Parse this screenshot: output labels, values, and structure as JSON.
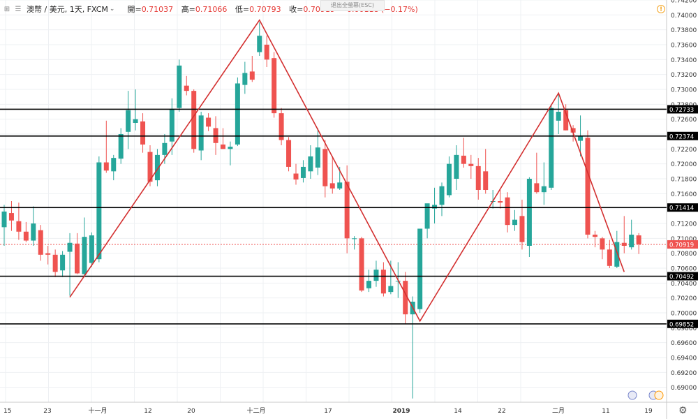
{
  "header": {
    "symbol": "澳幣 / 美元, 1天, FXCM",
    "open_label": "開=",
    "open_value": "0.71037",
    "high_label": "高=",
    "high_value": "0.71066",
    "low_label": "低=",
    "low_value": "0.70793",
    "close_label": "收=",
    "close_value": "0.70919",
    "change": "−0.00118 (−0.17%)",
    "esc_hint": "退出全螢幕(ESC)"
  },
  "colors": {
    "up": "#26a69a",
    "down": "#ef5350",
    "trendline": "#d32f2f",
    "level_line": "#000000",
    "last_price": "#ef5350"
  },
  "chart_data": {
    "type": "candlestick",
    "ylim": [
      0.688,
      0.742
    ],
    "y_ticks": [
      "0.74200",
      "0.74000",
      "0.73800",
      "0.73600",
      "0.73400",
      "0.73200",
      "0.73000",
      "0.72800",
      "0.72600",
      "0.72400",
      "0.72200",
      "0.72000",
      "0.71800",
      "0.71600",
      "0.71400",
      "0.71200",
      "0.71000",
      "0.70800",
      "0.70600",
      "0.70400",
      "0.70200",
      "0.70000",
      "0.69800",
      "0.69600",
      "0.69400",
      "0.69200",
      "0.69000"
    ],
    "x_ticks": [
      "15",
      "23",
      "十一月",
      "12",
      "20",
      "十二月",
      "17",
      "2019",
      "14",
      "22",
      "二月",
      "11",
      "19"
    ],
    "last_price": "0.70919",
    "horizontal_levels": [
      "0.72733",
      "0.72374",
      "0.71414",
      "0.70492",
      "0.69852"
    ],
    "candles": [
      {
        "o": 0.7115,
        "h": 0.7145,
        "l": 0.709,
        "c": 0.7136
      },
      {
        "o": 0.7134,
        "h": 0.715,
        "l": 0.711,
        "c": 0.7124
      },
      {
        "o": 0.7123,
        "h": 0.7148,
        "l": 0.7098,
        "c": 0.7109
      },
      {
        "o": 0.7109,
        "h": 0.7122,
        "l": 0.7095,
        "c": 0.7097
      },
      {
        "o": 0.7097,
        "h": 0.7143,
        "l": 0.709,
        "c": 0.712
      },
      {
        "o": 0.7111,
        "h": 0.7118,
        "l": 0.707,
        "c": 0.7078
      },
      {
        "o": 0.708,
        "h": 0.709,
        "l": 0.7065,
        "c": 0.7078
      },
      {
        "o": 0.7078,
        "h": 0.7085,
        "l": 0.7048,
        "c": 0.7055
      },
      {
        "o": 0.7057,
        "h": 0.7083,
        "l": 0.7048,
        "c": 0.7078
      },
      {
        "o": 0.7082,
        "h": 0.7107,
        "l": 0.7023,
        "c": 0.7094
      },
      {
        "o": 0.7093,
        "h": 0.7107,
        "l": 0.7052,
        "c": 0.7053
      },
      {
        "o": 0.7052,
        "h": 0.7128,
        "l": 0.7048,
        "c": 0.7102
      },
      {
        "o": 0.7067,
        "h": 0.7108,
        "l": 0.7062,
        "c": 0.7104
      },
      {
        "o": 0.7072,
        "h": 0.721,
        "l": 0.7068,
        "c": 0.7202
      },
      {
        "o": 0.7202,
        "h": 0.7258,
        "l": 0.7188,
        "c": 0.7191
      },
      {
        "o": 0.719,
        "h": 0.7212,
        "l": 0.7178,
        "c": 0.7208
      },
      {
        "o": 0.7207,
        "h": 0.7248,
        "l": 0.72,
        "c": 0.724
      },
      {
        "o": 0.7243,
        "h": 0.7298,
        "l": 0.722,
        "c": 0.7272
      },
      {
        "o": 0.7255,
        "h": 0.73,
        "l": 0.7245,
        "c": 0.726
      },
      {
        "o": 0.7257,
        "h": 0.7268,
        "l": 0.7215,
        "c": 0.7226
      },
      {
        "o": 0.7216,
        "h": 0.7225,
        "l": 0.717,
        "c": 0.7176
      },
      {
        "o": 0.7178,
        "h": 0.722,
        "l": 0.717,
        "c": 0.7212
      },
      {
        "o": 0.7212,
        "h": 0.724,
        "l": 0.72,
        "c": 0.7228
      },
      {
        "o": 0.723,
        "h": 0.7288,
        "l": 0.7212,
        "c": 0.7273
      },
      {
        "o": 0.7275,
        "h": 0.734,
        "l": 0.727,
        "c": 0.7332
      },
      {
        "o": 0.7305,
        "h": 0.7318,
        "l": 0.7292,
        "c": 0.7298
      },
      {
        "o": 0.7298,
        "h": 0.73,
        "l": 0.7215,
        "c": 0.722
      },
      {
        "o": 0.7218,
        "h": 0.727,
        "l": 0.7205,
        "c": 0.7265
      },
      {
        "o": 0.7262,
        "h": 0.7268,
        "l": 0.7244,
        "c": 0.725
      },
      {
        "o": 0.7248,
        "h": 0.7264,
        "l": 0.7212,
        "c": 0.7228
      },
      {
        "o": 0.7226,
        "h": 0.7248,
        "l": 0.722,
        "c": 0.722
      },
      {
        "o": 0.722,
        "h": 0.723,
        "l": 0.7198,
        "c": 0.7223
      },
      {
        "o": 0.7226,
        "h": 0.7316,
        "l": 0.7224,
        "c": 0.7308
      },
      {
        "o": 0.7306,
        "h": 0.7337,
        "l": 0.7294,
        "c": 0.7322
      },
      {
        "o": 0.7324,
        "h": 0.7345,
        "l": 0.731,
        "c": 0.7313
      },
      {
        "o": 0.735,
        "h": 0.739,
        "l": 0.7345,
        "c": 0.7372
      },
      {
        "o": 0.736,
        "h": 0.7372,
        "l": 0.733,
        "c": 0.734
      },
      {
        "o": 0.7342,
        "h": 0.735,
        "l": 0.7262,
        "c": 0.7268
      },
      {
        "o": 0.7268,
        "h": 0.7275,
        "l": 0.7225,
        "c": 0.7232
      },
      {
        "o": 0.7232,
        "h": 0.7236,
        "l": 0.719,
        "c": 0.7196
      },
      {
        "o": 0.7187,
        "h": 0.72,
        "l": 0.7172,
        "c": 0.7179
      },
      {
        "o": 0.7181,
        "h": 0.7205,
        "l": 0.7175,
        "c": 0.7196
      },
      {
        "o": 0.719,
        "h": 0.7225,
        "l": 0.718,
        "c": 0.721
      },
      {
        "o": 0.7195,
        "h": 0.7248,
        "l": 0.7185,
        "c": 0.7222
      },
      {
        "o": 0.722,
        "h": 0.7232,
        "l": 0.7155,
        "c": 0.717
      },
      {
        "o": 0.7174,
        "h": 0.721,
        "l": 0.716,
        "c": 0.7167
      },
      {
        "o": 0.7167,
        "h": 0.7196,
        "l": 0.7165,
        "c": 0.7175
      },
      {
        "o": 0.7176,
        "h": 0.7198,
        "l": 0.708,
        "c": 0.71
      },
      {
        "o": 0.71,
        "h": 0.7103,
        "l": 0.7085,
        "c": 0.71
      },
      {
        "o": 0.71,
        "h": 0.7102,
        "l": 0.7028,
        "c": 0.703
      },
      {
        "o": 0.7033,
        "h": 0.7058,
        "l": 0.7028,
        "c": 0.7043
      },
      {
        "o": 0.7043,
        "h": 0.707,
        "l": 0.7035,
        "c": 0.7058
      },
      {
        "o": 0.7058,
        "h": 0.7068,
        "l": 0.7022,
        "c": 0.7026
      },
      {
        "o": 0.7028,
        "h": 0.707,
        "l": 0.7025,
        "c": 0.7036
      },
      {
        "o": 0.7043,
        "h": 0.7068,
        "l": 0.702,
        "c": 0.7043
      },
      {
        "o": 0.7043,
        "h": 0.7055,
        "l": 0.6985,
        "c": 0.6998
      },
      {
        "o": 0.6998,
        "h": 0.7022,
        "l": 0.6885,
        "c": 0.7015
      },
      {
        "o": 0.7005,
        "h": 0.711,
        "l": 0.7,
        "c": 0.7113
      },
      {
        "o": 0.7113,
        "h": 0.7145,
        "l": 0.71,
        "c": 0.7147
      },
      {
        "o": 0.714,
        "h": 0.7168,
        "l": 0.712,
        "c": 0.7145
      },
      {
        "o": 0.7145,
        "h": 0.7175,
        "l": 0.713,
        "c": 0.717
      },
      {
        "o": 0.7158,
        "h": 0.721,
        "l": 0.7155,
        "c": 0.72
      },
      {
        "o": 0.718,
        "h": 0.7225,
        "l": 0.7165,
        "c": 0.7212
      },
      {
        "o": 0.7211,
        "h": 0.7235,
        "l": 0.7195,
        "c": 0.72
      },
      {
        "o": 0.72,
        "h": 0.7212,
        "l": 0.718,
        "c": 0.7197
      },
      {
        "o": 0.7197,
        "h": 0.7208,
        "l": 0.7152,
        "c": 0.7165
      },
      {
        "o": 0.719,
        "h": 0.722,
        "l": 0.716,
        "c": 0.7165
      },
      {
        "o": 0.715,
        "h": 0.7165,
        "l": 0.714,
        "c": 0.715
      },
      {
        "o": 0.715,
        "h": 0.7165,
        "l": 0.714,
        "c": 0.7148
      },
      {
        "o": 0.7155,
        "h": 0.7162,
        "l": 0.7108,
        "c": 0.7118
      },
      {
        "o": 0.7118,
        "h": 0.7138,
        "l": 0.711,
        "c": 0.7125
      },
      {
        "o": 0.713,
        "h": 0.7152,
        "l": 0.7085,
        "c": 0.7095
      },
      {
        "o": 0.709,
        "h": 0.7182,
        "l": 0.7075,
        "c": 0.718
      },
      {
        "o": 0.7174,
        "h": 0.7215,
        "l": 0.716,
        "c": 0.7162
      },
      {
        "o": 0.7162,
        "h": 0.7202,
        "l": 0.7145,
        "c": 0.717
      },
      {
        "o": 0.7168,
        "h": 0.728,
        "l": 0.7165,
        "c": 0.7275
      },
      {
        "o": 0.7258,
        "h": 0.7295,
        "l": 0.724,
        "c": 0.727
      },
      {
        "o": 0.7272,
        "h": 0.728,
        "l": 0.7245,
        "c": 0.7245
      },
      {
        "o": 0.7248,
        "h": 0.7252,
        "l": 0.723,
        "c": 0.7242
      },
      {
        "o": 0.7231,
        "h": 0.7265,
        "l": 0.721,
        "c": 0.7238
      },
      {
        "o": 0.7235,
        "h": 0.7245,
        "l": 0.71,
        "c": 0.7105
      },
      {
        "o": 0.7105,
        "h": 0.711,
        "l": 0.7088,
        "c": 0.7102
      },
      {
        "o": 0.71,
        "h": 0.7102,
        "l": 0.7072,
        "c": 0.7085
      },
      {
        "o": 0.7085,
        "h": 0.7098,
        "l": 0.706,
        "c": 0.7063
      },
      {
        "o": 0.7062,
        "h": 0.711,
        "l": 0.706,
        "c": 0.7095
      },
      {
        "o": 0.7094,
        "h": 0.713,
        "l": 0.708,
        "c": 0.709
      },
      {
        "o": 0.7088,
        "h": 0.7125,
        "l": 0.7085,
        "c": 0.7105
      },
      {
        "o": 0.7104,
        "h": 0.7107,
        "l": 0.7079,
        "c": 0.7092
      }
    ],
    "trend_line": [
      {
        "bar": 9,
        "price": 0.7021
      },
      {
        "bar": 35,
        "price": 0.7393
      },
      {
        "bar": 57,
        "price": 0.6989
      },
      {
        "bar": 76,
        "price": 0.7295
      },
      {
        "bar": 85,
        "price": 0.7055
      }
    ]
  }
}
